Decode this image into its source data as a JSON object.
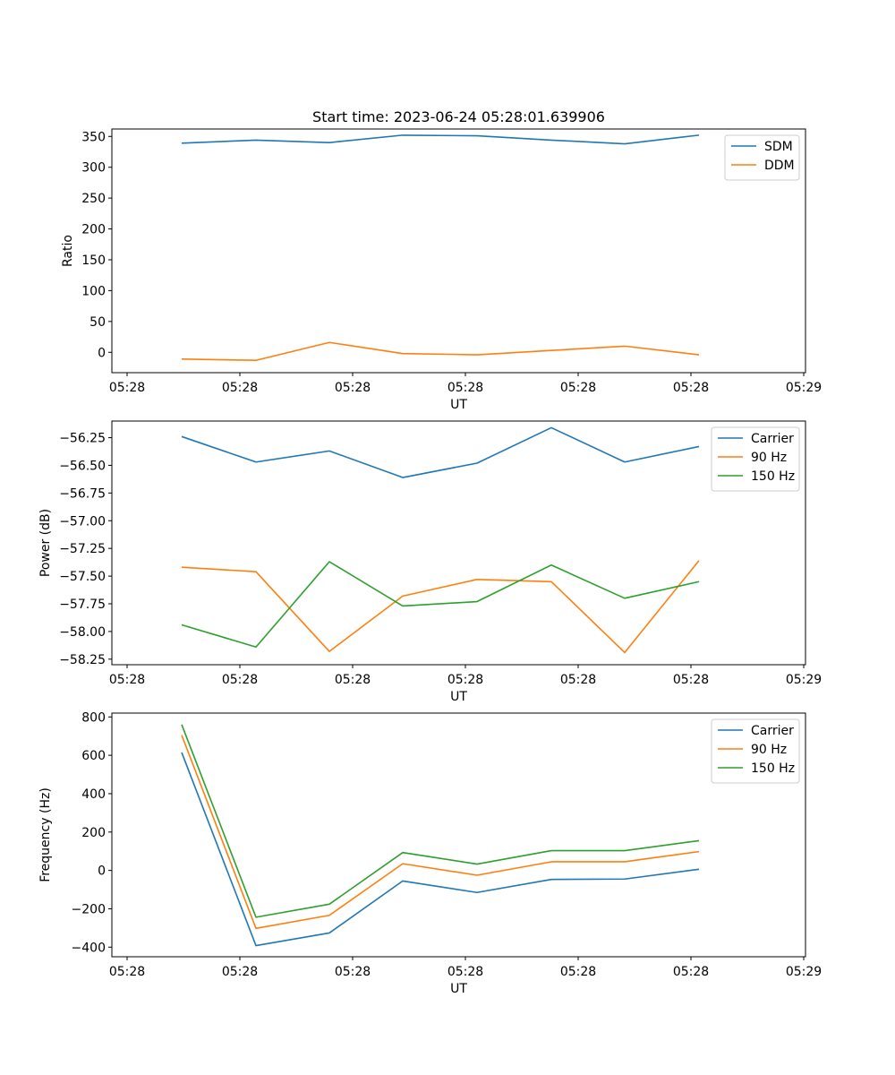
{
  "figure": {
    "title": "Start time: 2023-06-24 05:28:01.639906"
  },
  "chart_data": [
    {
      "type": "line",
      "xlabel": "UT",
      "ylabel": "Ratio",
      "ylim": [
        -33,
        362
      ],
      "yticks": [
        0,
        50,
        100,
        150,
        200,
        250,
        300,
        350
      ],
      "yticklabels": [
        "0",
        "50",
        "100",
        "150",
        "200",
        "250",
        "300",
        "350"
      ],
      "x_tick_labels": [
        "05:28",
        "05:28",
        "05:28",
        "05:28",
        "05:28",
        "05:28",
        "05:28"
      ],
      "x_tick_final_label": "05:29",
      "legend_position": "upper-right",
      "series": [
        {
          "name": "SDM",
          "color": "#1f77b4",
          "values": [
            339,
            344,
            340,
            352,
            351,
            344,
            338,
            352
          ]
        },
        {
          "name": "DDM",
          "color": "#ff7f0e",
          "values": [
            -11,
            -13,
            16,
            -2,
            -4,
            3,
            10,
            -4
          ]
        }
      ]
    },
    {
      "type": "line",
      "xlabel": "UT",
      "ylabel": "Power (dB)",
      "ylim": [
        -58.3,
        -56.1
      ],
      "yticks": [
        -58.25,
        -58.0,
        -57.75,
        -57.5,
        -57.25,
        -57.0,
        -56.75,
        -56.5,
        -56.25
      ],
      "yticklabels": [
        "−58.25",
        "−58.00",
        "−57.75",
        "−57.50",
        "−57.25",
        "−57.00",
        "−56.75",
        "−56.50",
        "−56.25"
      ],
      "x_tick_labels": [
        "05:28",
        "05:28",
        "05:28",
        "05:28",
        "05:28",
        "05:28",
        "05:28"
      ],
      "x_tick_final_label": "05:29",
      "legend_position": "upper-right",
      "series": [
        {
          "name": "Carrier",
          "color": "#1f77b4",
          "values": [
            -56.24,
            -56.47,
            -56.37,
            -56.61,
            -56.48,
            -56.16,
            -56.47,
            -56.33
          ]
        },
        {
          "name": "90 Hz",
          "color": "#ff7f0e",
          "values": [
            -57.42,
            -57.46,
            -58.18,
            -57.68,
            -57.53,
            -57.55,
            -58.19,
            -57.36
          ]
        },
        {
          "name": "150 Hz",
          "color": "#2ca02c",
          "values": [
            -57.94,
            -58.14,
            -57.37,
            -57.77,
            -57.73,
            -57.4,
            -57.7,
            -57.55
          ]
        }
      ]
    },
    {
      "type": "line",
      "xlabel": "UT",
      "ylabel": "Frequency (Hz)",
      "ylim": [
        -450,
        820
      ],
      "yticks": [
        -400,
        -200,
        0,
        200,
        400,
        600,
        800
      ],
      "yticklabels": [
        "−400",
        "−200",
        "0",
        "200",
        "400",
        "600",
        "800"
      ],
      "x_tick_labels": [
        "05:28",
        "05:28",
        "05:28",
        "05:28",
        "05:28",
        "05:28",
        "05:28"
      ],
      "x_tick_final_label": "05:29",
      "legend_position": "upper-right",
      "series": [
        {
          "name": "Carrier",
          "color": "#1f77b4",
          "values": [
            615,
            -392,
            -326,
            -55,
            -115,
            -47,
            -45,
            6
          ]
        },
        {
          "name": "90 Hz",
          "color": "#ff7f0e",
          "values": [
            705,
            -302,
            -234,
            35,
            -25,
            45,
            45,
            98
          ]
        },
        {
          "name": "150 Hz",
          "color": "#2ca02c",
          "values": [
            760,
            -244,
            -176,
            93,
            33,
            103,
            103,
            155
          ]
        }
      ]
    }
  ]
}
